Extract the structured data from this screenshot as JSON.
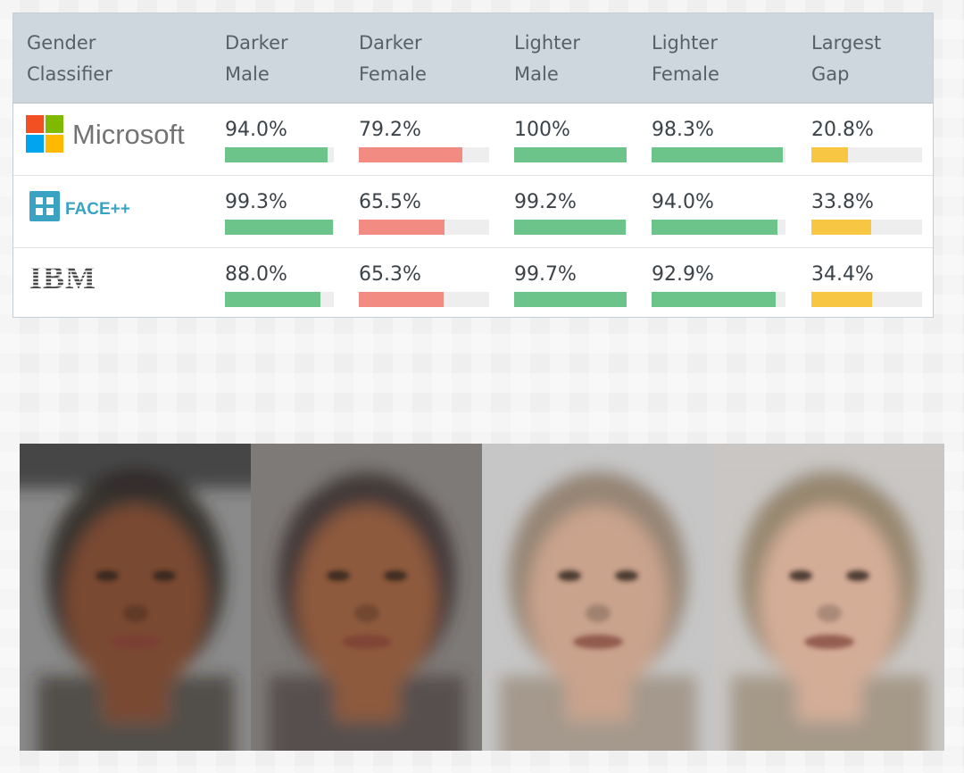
{
  "table": {
    "headers": [
      "Gender\nClassifier",
      "Darker\nMale",
      "Darker\nFemale",
      "Lighter\nMale",
      "Lighter\nFemale",
      "Largest\nGap"
    ],
    "rows": [
      {
        "classifier": "Microsoft",
        "logo_icon": "microsoft-logo-icon",
        "values": [
          "94.0%",
          "79.2%",
          "100%",
          "98.3%",
          "20.8%"
        ]
      },
      {
        "classifier": "FACE++",
        "logo_icon": "faceplusplus-logo-icon",
        "values": [
          "99.3%",
          "65.5%",
          "99.2%",
          "94.0%",
          "33.8%"
        ]
      },
      {
        "classifier": "IBM",
        "logo_icon": "ibm-logo-icon",
        "values": [
          "88.0%",
          "65.3%",
          "99.7%",
          "92.9%",
          "34.4%"
        ]
      }
    ]
  },
  "chart_data": {
    "type": "table",
    "columns": [
      "Gender Classifier",
      "Darker Male",
      "Darker Female",
      "Lighter Male",
      "Lighter Female",
      "Largest Gap"
    ],
    "series": [
      {
        "name": "Microsoft",
        "values": [
          94.0,
          79.2,
          100,
          98.3,
          20.8
        ]
      },
      {
        "name": "FACE++",
        "values": [
          99.3,
          65.5,
          99.2,
          94.0,
          33.8
        ]
      },
      {
        "name": "IBM",
        "values": [
          88.0,
          65.3,
          99.7,
          92.9,
          34.4
        ]
      }
    ],
    "unit": "%",
    "bar_scale_max": 100
  },
  "colors": {
    "bar_good": "#6dc48a",
    "bar_bad": "#f28b82",
    "bar_gap": "#f7c744",
    "header_bg": "#cdd7dd"
  },
  "photos": [
    {
      "icon": "average-face-darker-male",
      "skin": "#7a4a30",
      "hair": "#2c2422",
      "bg": "#8a8a8a"
    },
    {
      "icon": "average-face-darker-female",
      "skin": "#8e5a3e",
      "hair": "#3a3030",
      "bg": "#7e7a78"
    },
    {
      "icon": "average-face-lighter-male",
      "skin": "#c9a38c",
      "hair": "#8d7a66",
      "bg": "#c6c6c6"
    },
    {
      "icon": "average-face-lighter-female",
      "skin": "#d4ad97",
      "hair": "#8e7c60",
      "bg": "#c9c6c4"
    }
  ]
}
